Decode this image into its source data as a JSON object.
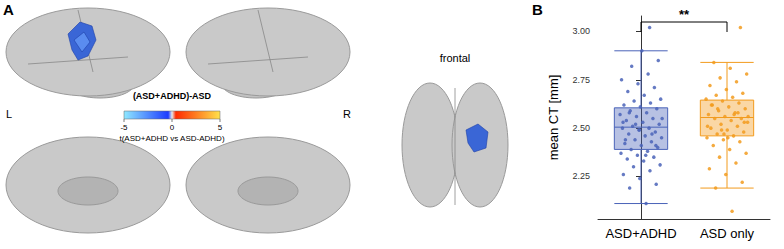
{
  "panel_labels": [
    "A",
    "B"
  ],
  "brain_panel": {
    "hemisphere_labels": [
      "L",
      "R"
    ],
    "view_label": "frontal",
    "colorbar": {
      "title": "(ASD+ADHD)-ASD",
      "label": "t(ASD+ADHD vs ASD-ADHD)",
      "range": [
        -5,
        5
      ],
      "ticks": [
        -5,
        0,
        5
      ]
    }
  },
  "chart_data": {
    "type": "boxplot",
    "categories": [
      "ASD+ADHD",
      "ASD only"
    ],
    "y_label": "mean CT [mm]",
    "ylim": [
      2.03,
      3.08
    ],
    "yticks": [
      {
        "value": 2.25,
        "label": "2.25"
      },
      {
        "value": 2.5,
        "label": "2.50"
      },
      {
        "value": 2.75,
        "label": "2.75"
      },
      {
        "value": 3,
        "label": "3.00"
      }
    ],
    "grid": false,
    "annotation": "**",
    "series": [
      {
        "name": "ASD+ADHD",
        "color": "#4a63b8",
        "box": [
          2.11,
          2.39,
          2.505,
          2.605,
          2.9
        ],
        "points": [
          2.11,
          2.19,
          2.21,
          2.24,
          2.26,
          2.28,
          2.3,
          2.31,
          2.33,
          2.34,
          2.35,
          2.36,
          2.37,
          2.38,
          2.39,
          2.4,
          2.41,
          2.42,
          2.43,
          2.44,
          2.45,
          2.46,
          2.47,
          2.48,
          2.49,
          2.5,
          2.5,
          2.51,
          2.52,
          2.53,
          2.54,
          2.55,
          2.56,
          2.57,
          2.58,
          2.59,
          2.6,
          2.61,
          2.62,
          2.63,
          2.64,
          2.65,
          2.67,
          2.69,
          2.71,
          2.73,
          2.75,
          2.78,
          2.82,
          2.85,
          2.9,
          2.44,
          2.47,
          2.52,
          2.55,
          2.36,
          2.58,
          2.41,
          2.49,
          2.53,
          3.02
        ]
      },
      {
        "name": "ASD only",
        "color": "#f29b1d",
        "box": [
          2.19,
          2.46,
          2.555,
          2.645,
          2.84
        ],
        "points": [
          2.07,
          2.19,
          2.22,
          2.26,
          2.29,
          2.32,
          2.35,
          2.37,
          2.39,
          2.41,
          2.43,
          2.44,
          2.45,
          2.46,
          2.47,
          2.48,
          2.49,
          2.5,
          2.51,
          2.52,
          2.53,
          2.54,
          2.55,
          2.55,
          2.56,
          2.57,
          2.58,
          2.59,
          2.6,
          2.61,
          2.62,
          2.63,
          2.64,
          2.65,
          2.66,
          2.67,
          2.68,
          2.7,
          2.72,
          2.74,
          2.76,
          2.78,
          2.81,
          2.84,
          3.02,
          2.47,
          2.51,
          2.57,
          2.6,
          2.53,
          2.45,
          2.62,
          2.58,
          2.49,
          2.56
        ]
      }
    ]
  }
}
